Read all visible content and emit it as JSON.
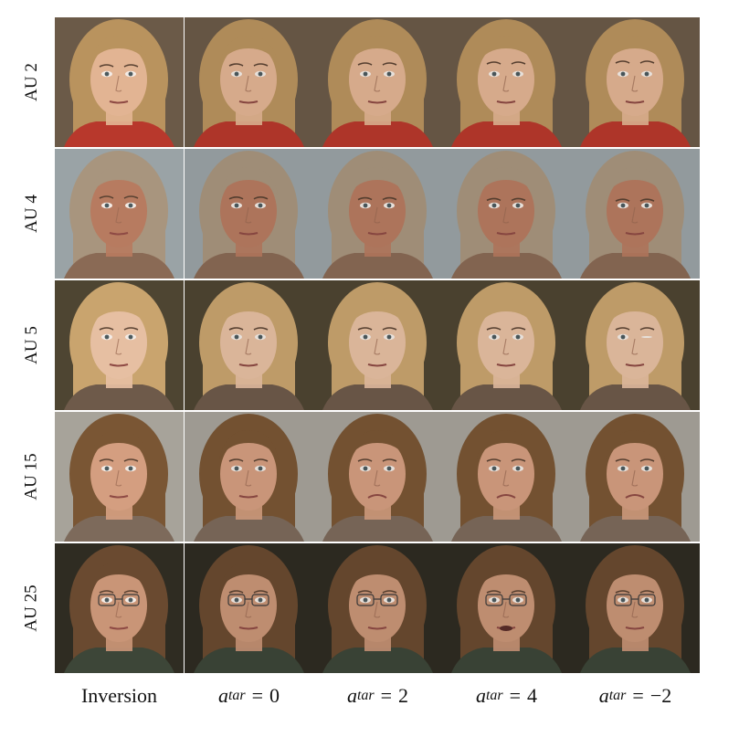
{
  "columns": [
    {
      "type": "text",
      "text": "Inversion"
    },
    {
      "type": "math",
      "var": "a",
      "sub": "tar",
      "op": "=",
      "value": "0"
    },
    {
      "type": "math",
      "var": "a",
      "sub": "tar",
      "op": "=",
      "value": "2"
    },
    {
      "type": "math",
      "var": "a",
      "sub": "tar",
      "op": "=",
      "value": "4"
    },
    {
      "type": "math",
      "var": "a",
      "sub": "tar",
      "op": "=",
      "value": "−2"
    }
  ],
  "rows": [
    {
      "label": "AU 2",
      "bg": "#6b5a48",
      "hair": "#b9935e",
      "skin": "#e2b493",
      "cloth": "#b8382c",
      "glasses": false
    },
    {
      "label": "AU 4",
      "bg": "#9aa3a6",
      "hair": "#a8957e",
      "skin": "#b77b60",
      "cloth": "#8a6a55",
      "glasses": false
    },
    {
      "label": "AU 5",
      "bg": "#4e4532",
      "hair": "#c9a46e",
      "skin": "#e6bfa2",
      "cloth": "#6e5a4a",
      "glasses": false
    },
    {
      "label": "AU 15",
      "bg": "#a7a39a",
      "hair": "#7a5634",
      "skin": "#d49e80",
      "cloth": "#7d6a5b",
      "glasses": false
    },
    {
      "label": "AU 25",
      "bg": "#2f2c22",
      "hair": "#6a4a30",
      "skin": "#c99577",
      "cloth": "#3d4638",
      "glasses": true
    }
  ]
}
